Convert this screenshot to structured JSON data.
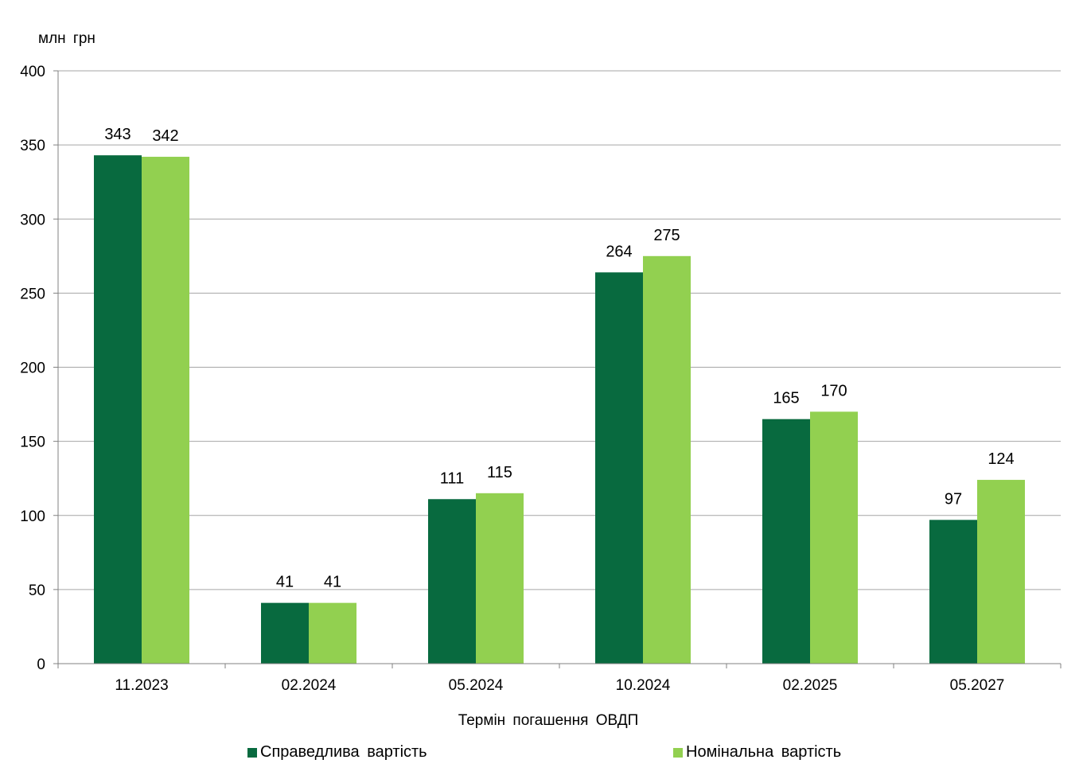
{
  "colors": {
    "fair": "#086a3f",
    "nominal": "#92d050",
    "grid": "#a6a6a6",
    "axis": "#808080"
  },
  "chart_data": {
    "type": "bar",
    "ylabel": "млн  грн",
    "xlabel": "Термін  погашення  ОВДП",
    "ylim": [
      0,
      400
    ],
    "yticks": [
      "0",
      "50",
      "100",
      "150",
      "200",
      "250",
      "300",
      "350",
      "400"
    ],
    "grid": true,
    "legend": "bottom",
    "categories": [
      "11.2023",
      "02.2024",
      "05.2024",
      "10.2024",
      "02.2025",
      "05.2027"
    ],
    "series": [
      {
        "name": "Справедлива  вартість",
        "values": [
          343,
          41,
          111,
          264,
          165,
          97
        ],
        "labels": [
          "343",
          "41",
          "111",
          "264",
          "165",
          "97"
        ]
      },
      {
        "name": "Номінальна  вартість",
        "values": [
          342,
          41,
          115,
          275,
          170,
          124
        ],
        "labels": [
          "342",
          "41",
          "115",
          "275",
          "170",
          "124"
        ]
      }
    ]
  }
}
